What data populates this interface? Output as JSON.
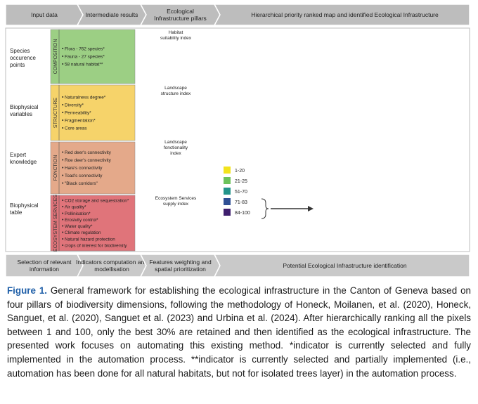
{
  "header": {
    "columns": [
      "Input data",
      "Intermediate results",
      "Ecological Infrastructure pillars",
      "Hierarchical priority ranked map and identified Ecological Infrastructure"
    ]
  },
  "inputs": [
    "Species occurence points",
    "Biophysical variables",
    "Expert knowledge",
    "Biophysical table"
  ],
  "pillars": [
    {
      "name": "COMPOSITION",
      "items": [
        "Flora - 762 species*",
        "Fauna - 27 species*",
        "58 natural habitat**"
      ],
      "map_label": "Habitat suitability index"
    },
    {
      "name": "STRUCTURE",
      "items": [
        "Naturalness degree*",
        "Diversity*",
        "Permeability*",
        "Fragmentation*",
        "Core areas"
      ],
      "map_label": "Landscape structure index"
    },
    {
      "name": "FONCTION",
      "items": [
        "Red deer's connectivity",
        "Roe deer's connectivity",
        "Hare's connectivity",
        "Toad's connectivity",
        "\"Black corridors\""
      ],
      "map_label": "Landscape fonctionality index"
    },
    {
      "name": "ECOSYSTEM SERVICES",
      "items": [
        "CO2 storage and sequestration*",
        "Air quality*",
        "Pollinisation*",
        "Erosivity control*",
        "Water quality*",
        "Climate regulation",
        "Natural hazard protection",
        "crops of interest for biodiversity"
      ],
      "map_label": "Ecosystem Services supply index"
    }
  ],
  "legend": [
    {
      "label": "1-20",
      "color": "#f2e31c"
    },
    {
      "label": "21-25",
      "color": "#6cc35a"
    },
    {
      "label": "51-70",
      "color": "#23948a"
    },
    {
      "label": "71-83",
      "color": "#2f4f94"
    },
    {
      "label": "84-100",
      "color": "#3f1f6e"
    }
  ],
  "footer": [
    "Selection of relevant information",
    "Indicators computation and modellisation",
    "Features weighting and spatial prioritization",
    "Potential Ecological Infrastructure identification"
  ],
  "caption": {
    "label": "Figure 1.",
    "text": "General framework for establishing the ecological infrastructure in the Canton of Geneva based on four pillars of biodiversity dimensions, following the methodology of Honeck, Moilanen, et al. (2020), Honeck, Sanguet, et al. (2020), Sanguet et al. (2023) and Urbina et al. (2024). After hierarchically ranking all the pixels between 1 and 100, only the best 30% are retained and then identified as the ecological infrastructure. The presented work focuses on automating this existing method. *indicator is currently selected and fully implemented in the automation process. **indicator is currently selected and partially implemented (i.e., automation has been done for all natural habitats, but not for isolated trees layer) in the automation process."
  }
}
